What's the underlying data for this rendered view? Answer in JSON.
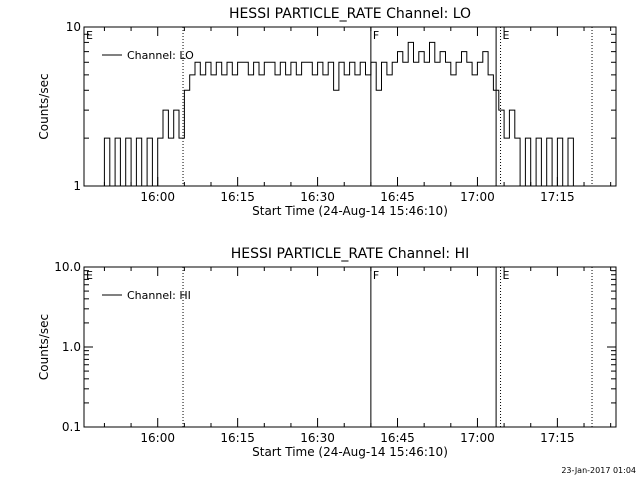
{
  "chart_data": [
    {
      "type": "line",
      "title": "HESSI PARTICLE_RATE Channel: LO",
      "xlabel": "Start Time (24-Aug-14 15:46:10)",
      "ylabel": "Counts/sec",
      "y_scale": "log",
      "ylim": [
        1,
        10
      ],
      "y_ticks": [
        "1",
        "10"
      ],
      "xlim": [
        "15:46:10",
        "17:26:00"
      ],
      "x_ticks": [
        "16:00",
        "16:15",
        "16:30",
        "16:45",
        "17:00",
        "17:15"
      ],
      "grid": false,
      "legend": {
        "position": "top-left",
        "entries": [
          "Channel: LO"
        ]
      },
      "flag_labels": [
        {
          "label": "E",
          "x": "15:46:10",
          "style": "none"
        },
        {
          "label": "",
          "x": "16:04:45",
          "style": "dotted"
        },
        {
          "label": "F",
          "x": "16:40:00",
          "style": "solid"
        },
        {
          "label": "",
          "x": "17:03:30",
          "style": "solid"
        },
        {
          "label": "E",
          "x": "17:04:20",
          "style": "dotted"
        },
        {
          "label": "",
          "x": "17:21:30",
          "style": "dotted"
        }
      ],
      "series": [
        {
          "name": "Channel: LO",
          "x": [
            "15:49:30",
            "15:50:30",
            "15:51:30",
            "15:52:30",
            "15:53:30",
            "15:54:30",
            "15:55:30",
            "15:56:30",
            "15:57:30",
            "15:58:30",
            "15:59:30",
            "16:00:30",
            "16:01:30",
            "16:02:30",
            "16:03:30",
            "16:04:30",
            "16:05:30",
            "16:06:30",
            "16:07:30",
            "16:08:30",
            "16:09:30",
            "16:10:30",
            "16:11:30",
            "16:12:30",
            "16:13:30",
            "16:14:30",
            "16:15:30",
            "16:16:30",
            "16:17:30",
            "16:18:30",
            "16:19:30",
            "16:20:30",
            "16:21:30",
            "16:22:30",
            "16:23:30",
            "16:24:30",
            "16:25:30",
            "16:26:30",
            "16:27:30",
            "16:28:30",
            "16:29:30",
            "16:30:30",
            "16:31:30",
            "16:32:30",
            "16:33:30",
            "16:34:30",
            "16:35:30",
            "16:36:30",
            "16:37:30",
            "16:38:30",
            "16:39:30",
            "16:40:30",
            "16:41:30",
            "16:42:30",
            "16:43:30",
            "16:44:30",
            "16:45:30",
            "16:46:30",
            "16:47:30",
            "16:48:30",
            "16:49:30",
            "16:50:30",
            "16:51:30",
            "16:52:30",
            "16:53:30",
            "16:54:30",
            "16:55:30",
            "16:56:30",
            "16:57:30",
            "16:58:30",
            "16:59:30",
            "17:00:30",
            "17:01:30",
            "17:02:30",
            "17:03:30",
            "17:04:30",
            "17:05:30",
            "17:06:30",
            "17:07:30",
            "17:08:30",
            "17:09:30",
            "17:10:30",
            "17:11:30",
            "17:12:30",
            "17:13:30",
            "17:14:30",
            "17:15:30",
            "17:16:30",
            "17:17:30",
            "17:18:30"
          ],
          "y": [
            1,
            2,
            1,
            2,
            1,
            2,
            1,
            2,
            1,
            2,
            1,
            2,
            3,
            2,
            3,
            2,
            4,
            5,
            6,
            5,
            6,
            5,
            6,
            5,
            6,
            5,
            6,
            6,
            5,
            6,
            5,
            6,
            6,
            5,
            6,
            5,
            6,
            5,
            6,
            6,
            5,
            6,
            5,
            6,
            4,
            6,
            5,
            6,
            5,
            6,
            5,
            6,
            4,
            6,
            5,
            6,
            7,
            6,
            8,
            6,
            7,
            6,
            8,
            6,
            7,
            6,
            5,
            6,
            7,
            6,
            5,
            6,
            7,
            5,
            4,
            3,
            2,
            3,
            2,
            1,
            2,
            1,
            2,
            1,
            2,
            1,
            2,
            1,
            2,
            1
          ]
        }
      ]
    },
    {
      "type": "line",
      "title": "HESSI PARTICLE_RATE Channel: HI",
      "xlabel": "Start Time (24-Aug-14 15:46:10)",
      "ylabel": "Counts/sec",
      "y_scale": "log",
      "ylim": [
        0.1,
        10
      ],
      "y_ticks": [
        "0.1",
        "1.0",
        "10.0"
      ],
      "xlim": [
        "15:46:10",
        "17:26:00"
      ],
      "x_ticks": [
        "16:00",
        "16:15",
        "16:30",
        "16:45",
        "17:00",
        "17:15"
      ],
      "grid": false,
      "legend": {
        "position": "top-left",
        "entries": [
          "Channel: HI"
        ]
      },
      "flag_labels": [
        {
          "label": "E",
          "x": "15:46:10",
          "style": "none"
        },
        {
          "label": "",
          "x": "16:04:45",
          "style": "dotted"
        },
        {
          "label": "F",
          "x": "16:40:00",
          "style": "solid"
        },
        {
          "label": "",
          "x": "17:03:30",
          "style": "solid"
        },
        {
          "label": "E",
          "x": "17:04:20",
          "style": "dotted"
        },
        {
          "label": "",
          "x": "17:21:30",
          "style": "dotted"
        }
      ],
      "series": [
        {
          "name": "Channel: HI",
          "x": [],
          "y": []
        }
      ]
    }
  ],
  "footer": {
    "timestamp": "23-Jan-2017 01:04"
  }
}
